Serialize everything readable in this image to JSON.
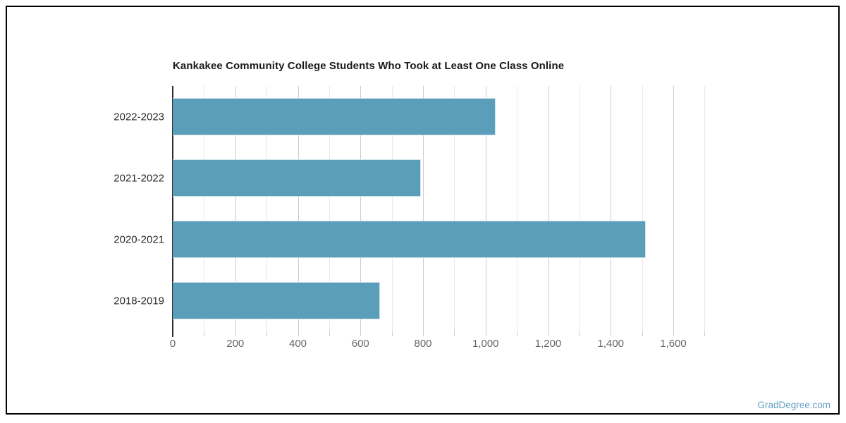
{
  "page": {
    "watermark": "GradDegree.com"
  },
  "chart_data": {
    "type": "bar",
    "orientation": "horizontal",
    "title": "Kankakee Community College Students Who Took at Least One Class Online",
    "categories": [
      "2022-2023",
      "2021-2022",
      "2020-2021",
      "2018-2019"
    ],
    "values": [
      1032,
      793,
      1512,
      663
    ],
    "xlabel": "",
    "ylabel": "",
    "xlim": [
      0,
      1725
    ],
    "x_major_ticks": [
      0,
      200,
      400,
      600,
      800,
      1000,
      1200,
      1400,
      1600
    ],
    "x_tick_labels": [
      "0",
      "200",
      "400",
      "600",
      "800",
      "1,000",
      "1,200",
      "1,400",
      "1,600"
    ],
    "x_minor_tick_step": 100,
    "grid": "vertical-on",
    "legend": "none",
    "bar_color": "#5a9eba",
    "major_grid_color": "#cccccc",
    "minor_grid_color": "#e8e8e8"
  }
}
